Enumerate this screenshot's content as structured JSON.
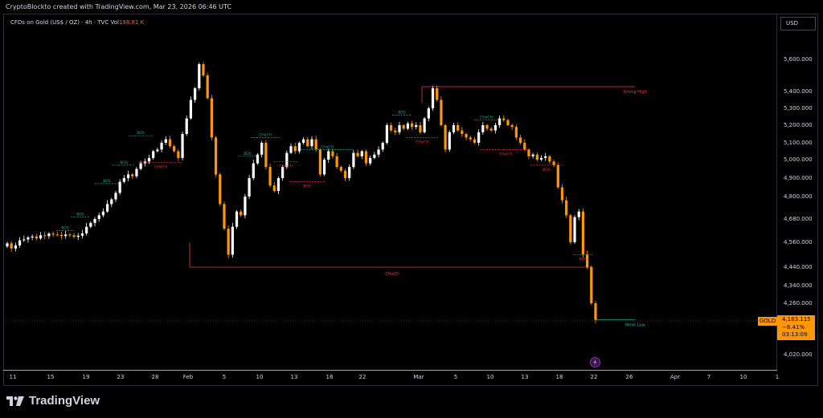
{
  "caption": "CryptoBlockto created with TradingView.com, Mar 23, 2026 06:46 UTC",
  "symbol": {
    "name": "CFDs on Gold (US$ / OZ) · 4h · TVC",
    "vol_label": "Vol",
    "vol_value": "198.81 K"
  },
  "currency": "USD",
  "gold_tag": "GOLD",
  "price_tag": {
    "price": "4,183.115",
    "change": "−6.41%",
    "countdown": "03:13:09"
  },
  "brand": "TradingView",
  "colors": {
    "up": "#ffffff",
    "down": "#ff9800",
    "bos": "#26a69a",
    "choch": "#f23645",
    "background": "#000000"
  },
  "chart_data": {
    "type": "candlestick",
    "y_ticks": [
      "5,600.000",
      "5,400.000",
      "5,300.000",
      "5,200.000",
      "5,100.000",
      "5,000.000",
      "4,900.000",
      "4,800.000",
      "4,680.000",
      "4,560.000",
      "4,440.000",
      "4,340.000",
      "4,260.000",
      "4,020.000"
    ],
    "x_ticks": [
      "11",
      "15",
      "19",
      "23",
      "28",
      "Feb",
      "5",
      "10",
      "13",
      "18",
      "22",
      "Mar",
      "5",
      "10",
      "13",
      "18",
      "22",
      "26",
      "Apr",
      "7",
      "10",
      "1"
    ],
    "closes": [
      4555,
      4530,
      4545,
      4570,
      4575,
      4585,
      4590,
      4580,
      4596,
      4592,
      4605,
      4600,
      4598,
      4592,
      4600,
      4596,
      4588,
      4594,
      4606,
      4640,
      4660,
      4680,
      4700,
      4720,
      4760,
      4785,
      4820,
      4880,
      4900,
      4920,
      4910,
      4950,
      4980,
      4990,
      5010,
      5050,
      5060,
      5100,
      5120,
      5080,
      5050,
      5010,
      5150,
      5240,
      5350,
      5420,
      5570,
      5500,
      5360,
      5130,
      4920,
      4760,
      4630,
      4500,
      4640,
      4720,
      4700,
      4800,
      4900,
      4980,
      5030,
      5100,
      4960,
      4860,
      4830,
      4900,
      4960,
      5040,
      5080,
      5050,
      5100,
      5120,
      5080,
      5120,
      5060,
      4920,
      5000,
      5050,
      5020,
      4960,
      4940,
      4900,
      4960,
      5040,
      5020,
      5050,
      4980,
      5010,
      5030,
      5060,
      5100,
      5200,
      5170,
      5160,
      5200,
      5180,
      5210,
      5190,
      5200,
      5160,
      5240,
      5300,
      5420,
      5350,
      5200,
      5060,
      5160,
      5200,
      5170,
      5150,
      5130,
      5120,
      5100,
      5160,
      5200,
      5180,
      5170,
      5200,
      5240,
      5230,
      5200,
      5190,
      5130,
      5100,
      5060,
      5020,
      5030,
      5000,
      5010,
      5020,
      4990,
      4970,
      4850,
      4780,
      4700,
      4560,
      4690,
      4720,
      4500,
      4440,
      4260,
      4183
    ],
    "annotations": [
      {
        "label": "BOS",
        "kind": "bos",
        "value": 4620
      },
      {
        "label": "BOS",
        "kind": "bos",
        "value": 4690
      },
      {
        "label": "BOS",
        "kind": "bos",
        "value": 4870
      },
      {
        "label": "BOS",
        "kind": "bos",
        "value": 4970
      },
      {
        "label": "BOS",
        "kind": "bos",
        "value": 5140
      },
      {
        "label": "CHoCH",
        "kind": "choch",
        "value": 4985
      },
      {
        "label": "BOS",
        "kind": "bos",
        "value": 5020
      },
      {
        "label": "CHoCH",
        "kind": "bos",
        "value": 5130
      },
      {
        "label": "CHoCH",
        "kind": "choch",
        "value": 4990
      },
      {
        "label": "BOS",
        "kind": "choch",
        "value": 4880
      },
      {
        "label": "CHoCH",
        "kind": "bos",
        "value": 5060
      },
      {
        "label": "BOS",
        "kind": "bos",
        "value": 5260
      },
      {
        "label": "CHoCH",
        "kind": "choch",
        "value": 5130
      },
      {
        "label": "CHoCH",
        "kind": "bos",
        "value": 5230
      },
      {
        "label": "CHoCH",
        "kind": "choch",
        "value": 5060
      },
      {
        "label": "BOS",
        "kind": "choch",
        "value": 4970
      },
      {
        "label": "BOS",
        "kind": "choch",
        "value": 4500
      }
    ],
    "levels": [
      {
        "label": "Strong High",
        "kind": "choch",
        "value": 5430
      },
      {
        "label": "CHoCH",
        "kind": "choch",
        "value": 4440
      },
      {
        "label": "Weak Low",
        "kind": "bos",
        "value": 4183
      }
    ]
  }
}
